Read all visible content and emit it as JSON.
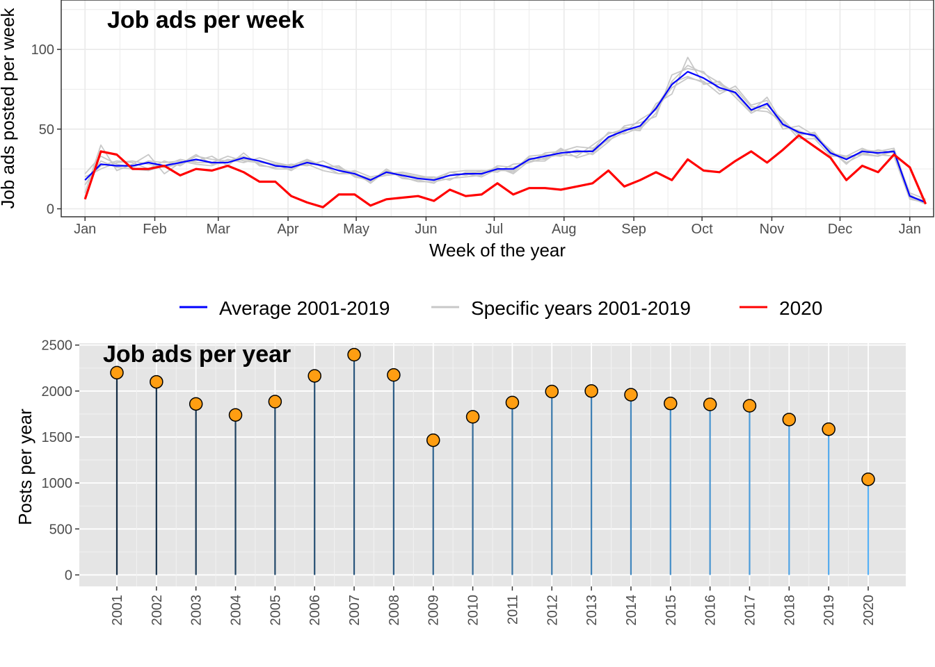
{
  "colors": {
    "average": "#0000ff",
    "specific_years": "#c8c8c8",
    "year_2020": "#ff0000",
    "point_fill": "#ff9e12",
    "stem_dark": "#132b43",
    "stem_light": "#56b1f7",
    "panel_bg_bottom": "#e5e5e5",
    "grid_top": "#ebebeb"
  },
  "legend": {
    "items": [
      {
        "key": "average",
        "label": "Average 2001-2019"
      },
      {
        "key": "specific_years",
        "label": "Specific years 2001-2019"
      },
      {
        "key": "year_2020",
        "label": "2020"
      }
    ]
  },
  "chart_data": [
    {
      "type": "line",
      "title": "Job ads per week",
      "xlabel": "Week of the year",
      "ylabel": "Job ads posted per week",
      "x_unit": "week of year",
      "x_ticks": [
        {
          "label": "Jan",
          "week": 1
        },
        {
          "label": "Feb",
          "week": 5.4
        },
        {
          "label": "Mar",
          "week": 9.4
        },
        {
          "label": "Apr",
          "week": 13.8
        },
        {
          "label": "May",
          "week": 18.1
        },
        {
          "label": "Jun",
          "week": 22.5
        },
        {
          "label": "Jul",
          "week": 26.8
        },
        {
          "label": "Aug",
          "week": 31.2
        },
        {
          "label": "Sep",
          "week": 35.6
        },
        {
          "label": "Oct",
          "week": 39.9
        },
        {
          "label": "Nov",
          "week": 44.3
        },
        {
          "label": "Dec",
          "week": 48.6
        },
        {
          "label": "Jan",
          "week": 53
        }
      ],
      "xlim": [
        -0.5,
        54.5
      ],
      "ylim": [
        -5,
        131
      ],
      "y_ticks": [
        0,
        50,
        100
      ],
      "grid": true,
      "series": [
        {
          "key": "average",
          "name": "Average 2001-2019",
          "values": [
            18,
            28,
            27,
            27,
            29,
            27,
            29,
            31,
            29,
            29,
            32,
            30,
            27,
            26,
            29,
            27,
            24,
            22,
            18,
            23,
            21,
            19,
            18,
            21,
            22,
            22,
            25,
            25,
            31,
            33,
            35,
            36,
            36,
            45,
            49,
            52,
            63,
            78,
            86,
            82,
            76,
            73,
            62,
            66,
            53,
            48,
            46,
            35,
            31,
            36,
            35,
            36,
            8,
            4
          ]
        },
        {
          "key": "year_2020",
          "name": "2020",
          "values": [
            6,
            36,
            34,
            25,
            25,
            27,
            21,
            25,
            24,
            27,
            23,
            17,
            17,
            8,
            4,
            1,
            9,
            9,
            2,
            6,
            7,
            8,
            5,
            12,
            8,
            9,
            16,
            9,
            13,
            13,
            12,
            14,
            16,
            24,
            14,
            18,
            23,
            18,
            31,
            24,
            23,
            30,
            36,
            29,
            37,
            46,
            39,
            32,
            18,
            27,
            23,
            34,
            26,
            3
          ]
        },
        {
          "key": "specific_years",
          "name": "Specific years 2001-2019",
          "traces": [
            [
              15,
              30,
              26,
              25,
              24,
              27,
              31,
              29,
              29,
              33,
              30,
              29,
              28,
              27,
              31,
              27,
              22,
              24,
              20,
              22,
              23,
              21,
              19,
              21,
              22,
              20,
              25,
              23,
              32,
              31,
              38,
              32,
              35,
              44,
              51,
              50,
              60,
              80,
              90,
              85,
              79,
              73,
              62,
              61,
              55,
              44,
              44,
              33,
              33,
              34,
              33,
              36,
              10,
              6
            ],
            [
              20,
              25,
              29,
              30,
              28,
              26,
              28,
              34,
              28,
              29,
              31,
              30,
              28,
              24,
              30,
              27,
              26,
              21,
              17,
              25,
              19,
              18,
              16,
              23,
              24,
              24,
              23,
              28,
              29,
              35,
              36,
              39,
              38,
              43,
              48,
              56,
              62,
              76,
              82,
              80,
              72,
              77,
              65,
              68,
              50,
              52,
              46,
              37,
              28,
              37,
              36,
              38,
              9,
              3
            ],
            [
              10,
              40,
              24,
              28,
              34,
              22,
              29,
              30,
              33,
              27,
              35,
              27,
              26,
              28,
              27,
              30,
              25,
              23,
              16,
              24,
              20,
              17,
              17,
              19,
              20,
              21,
              27,
              26,
              29,
              32,
              34,
              33,
              40,
              47,
              50,
              49,
              66,
              72,
              95,
              78,
              80,
              70,
              60,
              65,
              56,
              46,
              48,
              35,
              33,
              38,
              34,
              33,
              6,
              4
            ],
            [
              22,
              33,
              28,
              26,
              30,
              29,
              30,
              28,
              27,
              31,
              29,
              32,
              29,
              27,
              28,
              24,
              22,
              22,
              19,
              21,
              22,
              20,
              19,
              23,
              21,
              24,
              24,
              24,
              33,
              34,
              33,
              37,
              34,
              42,
              52,
              54,
              58,
              84,
              88,
              86,
              74,
              75,
              64,
              63,
              52,
              49,
              45,
              36,
              29,
              34,
              37,
              35,
              8,
              5
            ],
            [
              18,
              27,
              30,
              29,
              25,
              30,
              27,
              33,
              31,
              30,
              33,
              28,
              25,
              25,
              31,
              26,
              27,
              20,
              18,
              23,
              21,
              20,
              20,
              18,
              23,
              23,
              26,
              22,
              30,
              30,
              37,
              35,
              37,
              48,
              47,
              51,
              64,
              79,
              83,
              79,
              78,
              72,
              61,
              70,
              53,
              47,
              47,
              34,
              32,
              35,
              33,
              37,
              7,
              3
            ]
          ]
        }
      ]
    },
    {
      "type": "lollipop",
      "title": "Job ads per year",
      "xlabel": "",
      "ylabel": "Posts per year",
      "categories": [
        "2001",
        "2002",
        "2003",
        "2004",
        "2005",
        "2006",
        "2007",
        "2008",
        "2009",
        "2010",
        "2011",
        "2012",
        "2013",
        "2014",
        "2015",
        "2016",
        "2017",
        "2018",
        "2019",
        "2020"
      ],
      "values": [
        2200,
        2100,
        1860,
        1740,
        1885,
        2165,
        2395,
        2175,
        1465,
        1720,
        1875,
        1995,
        2000,
        1960,
        1865,
        1855,
        1840,
        1690,
        1585,
        1040
      ],
      "ylim": [
        -125,
        2520
      ],
      "y_ticks": [
        0,
        500,
        1000,
        1500,
        2000,
        2500
      ],
      "grid": true
    }
  ]
}
